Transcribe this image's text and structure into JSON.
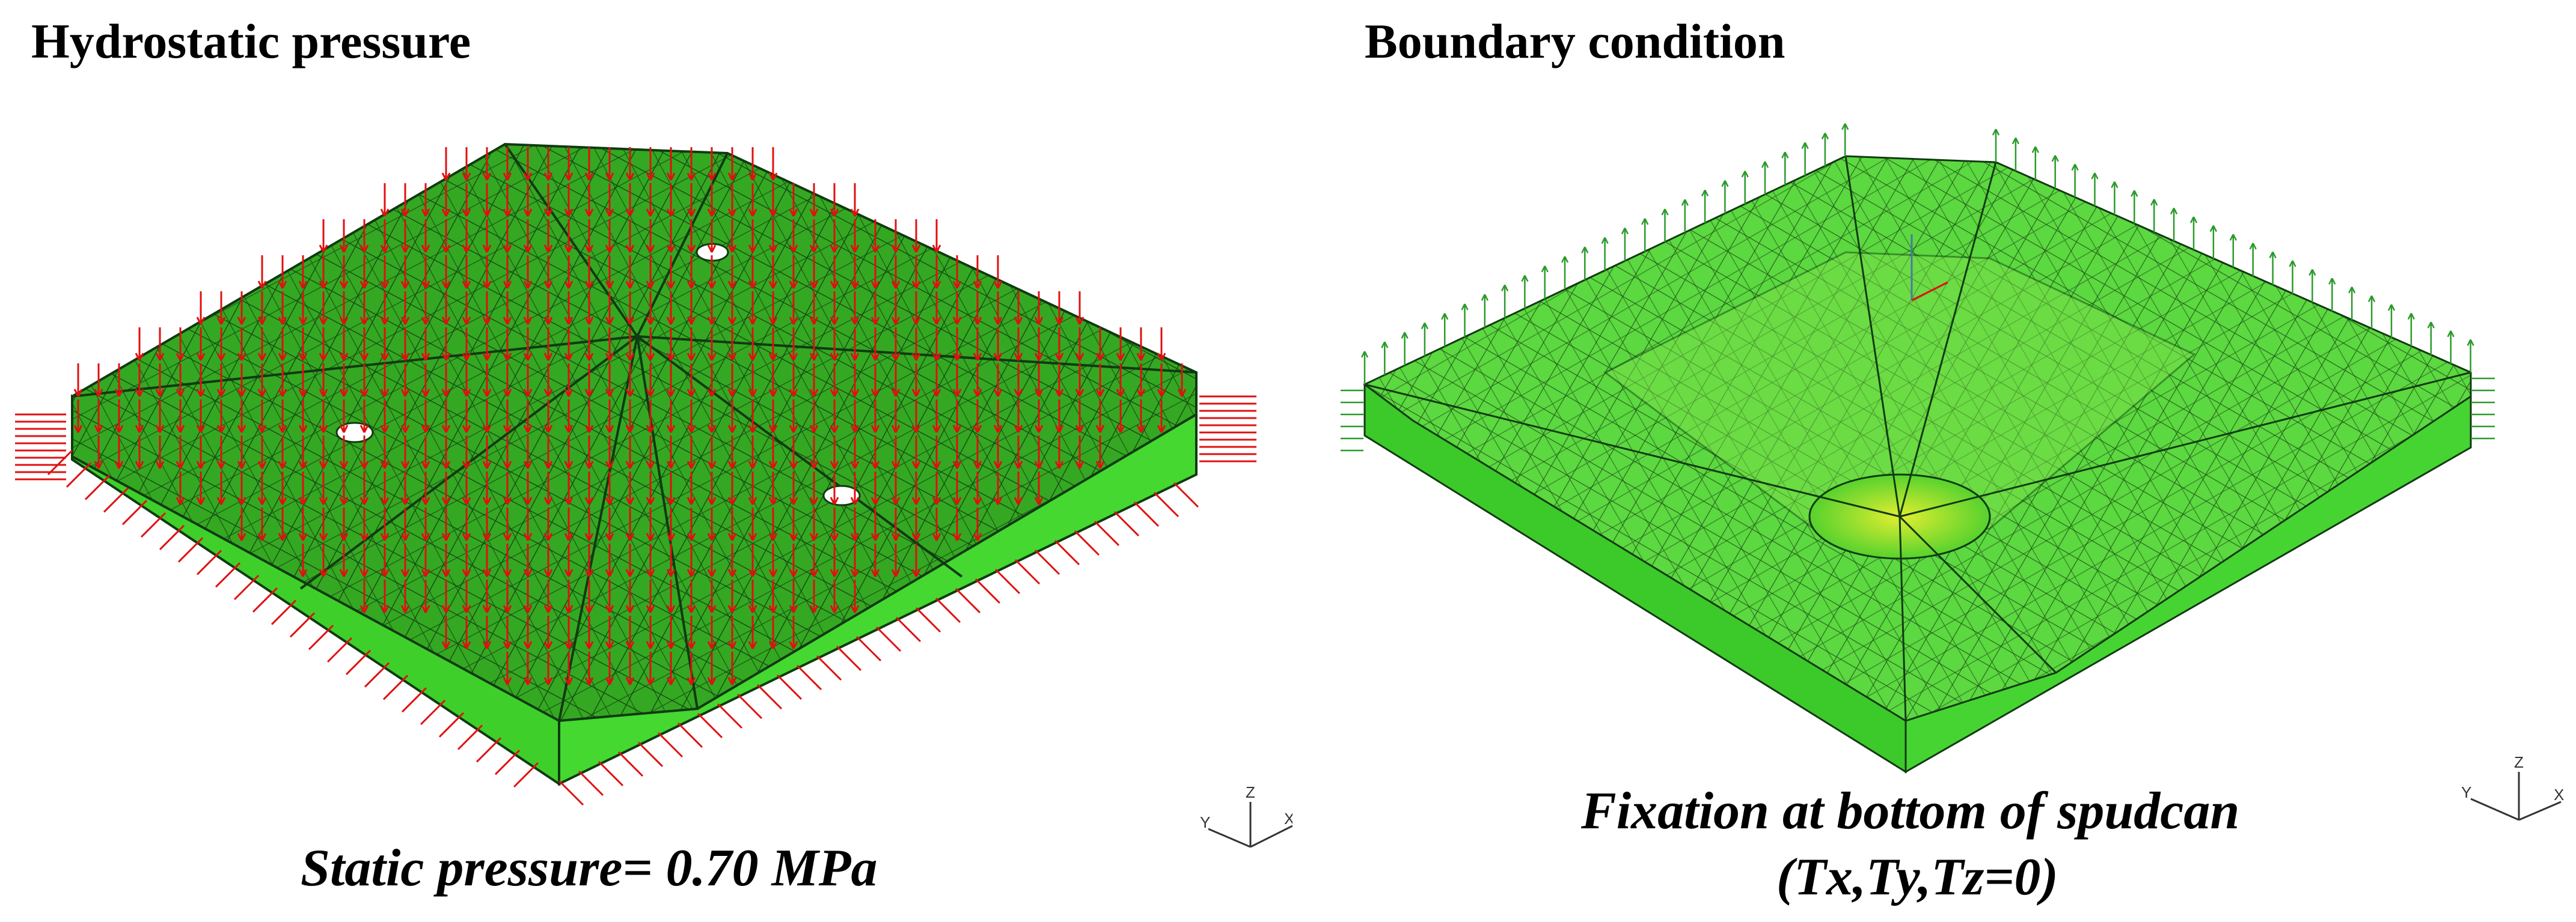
{
  "left_panel": {
    "title": "Hydrostatic pressure",
    "caption": "Static pressure= 0.70 MPa"
  },
  "right_panel": {
    "title": "Boundary condition",
    "caption_line1": "Fixation at bottom of spudcan",
    "caption_line2": "(Tx,Ty,Tz=0)"
  },
  "axis_triad": {
    "z": "Z",
    "x": "X",
    "y": "Y"
  },
  "colors": {
    "mesh_green": "#3ecf2a",
    "mesh_green_dark": "#2faa20",
    "top_face_green": "#33a020",
    "pressure_arrows": "#e01010",
    "constraint_arrows": "#2a9a2a",
    "center_yellow": "#d8e830",
    "mesh_lines": "#103a10"
  }
}
